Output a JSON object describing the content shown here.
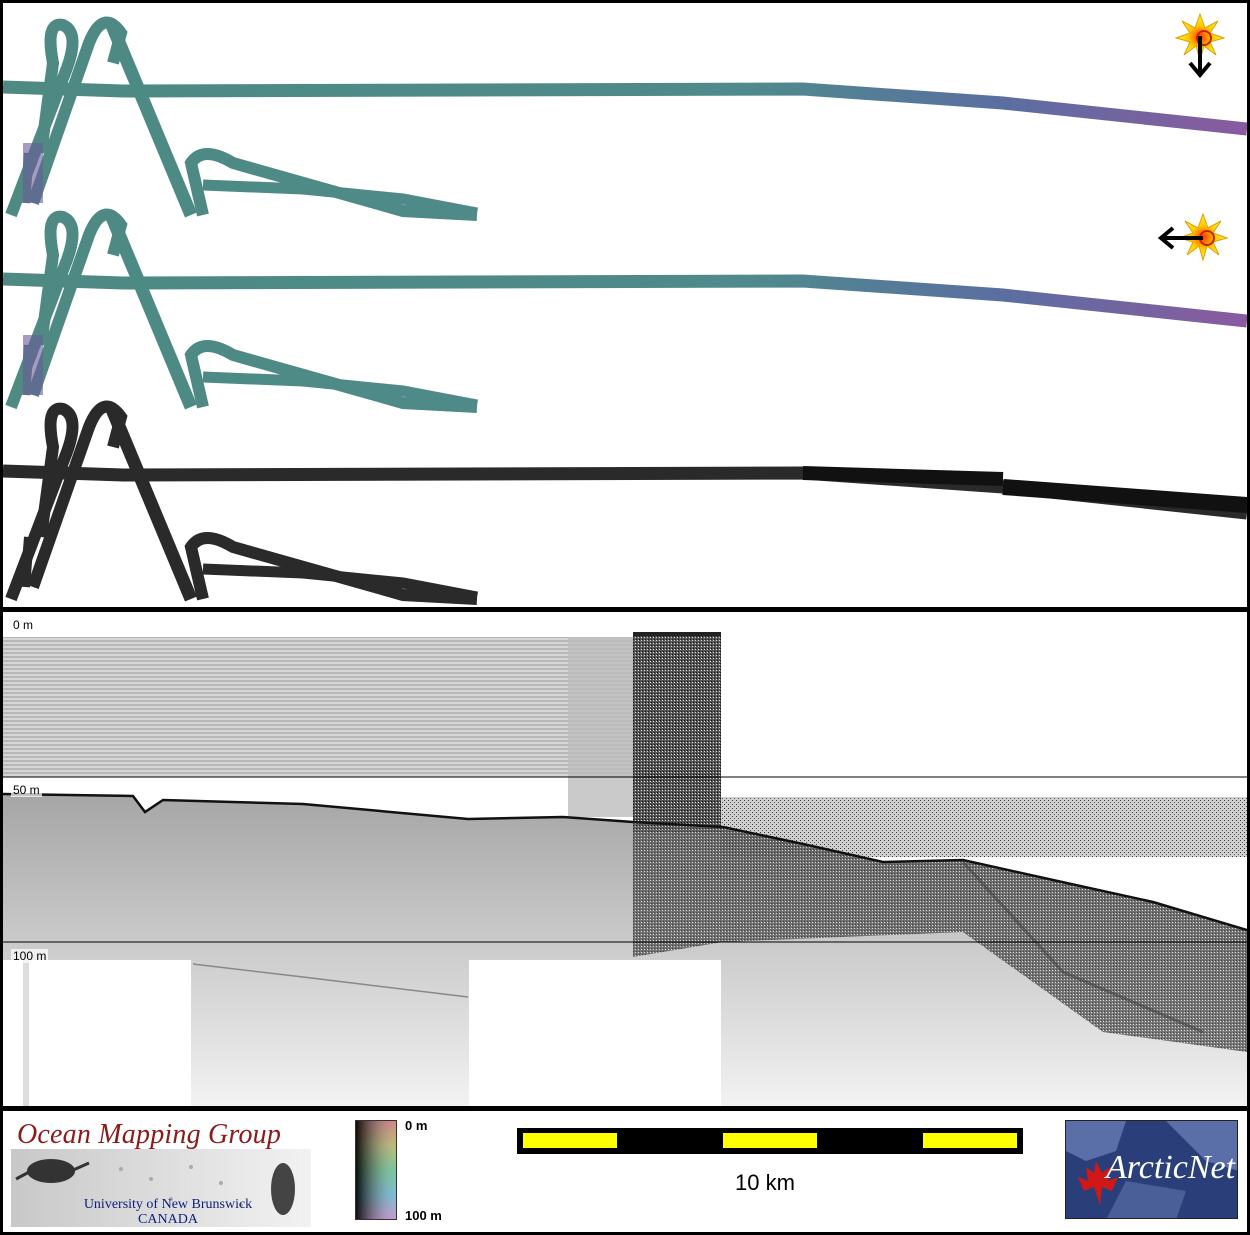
{
  "footer": {
    "logo_title": "Ocean Mapping Group",
    "logo_sub1": "University of New Brunswick",
    "logo_sub2": "CANADA",
    "colorbar_top": "0 m",
    "colorbar_bottom": "100 m",
    "scale_label": "10 km",
    "partner_logo": "ArcticNet"
  },
  "profile": {
    "depth_labels": [
      "0 m",
      "50 m",
      "100 m"
    ]
  },
  "icons": {
    "sun_illumination": "sun-icon",
    "arrow_down": "arrow-down-icon",
    "arrow_left": "arrow-left-icon"
  },
  "colors": {
    "track_start": "#4e8a82",
    "track_end": "#8a5aa0",
    "backscatter": "#2a2a2a",
    "scale_segment": "#ffff00",
    "logo_red": "#8b1a1a",
    "logo_blue": "#10207a"
  }
}
